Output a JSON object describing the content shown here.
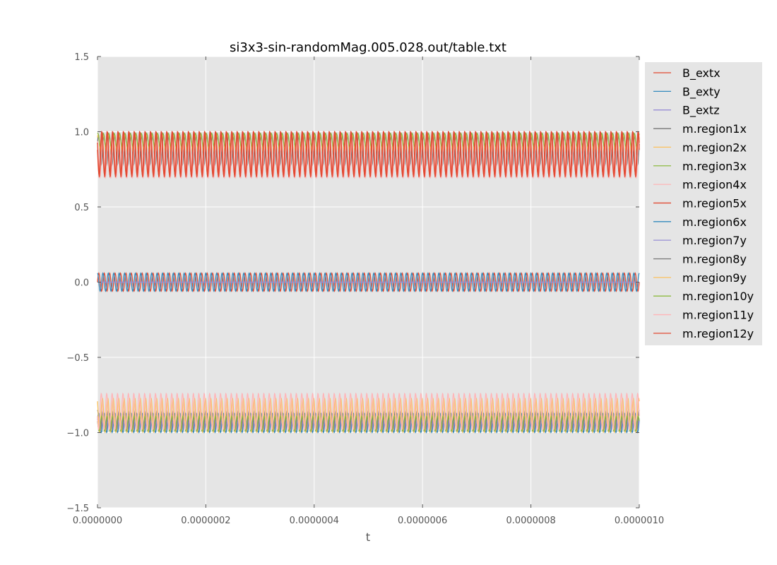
{
  "chart_data": {
    "type": "line",
    "title": "si3x3-sin-randomMag.005.028.out/table.txt",
    "xlabel": "t",
    "ylabel": "",
    "xlim": [
      0,
      1e-06
    ],
    "ylim": [
      -1.5,
      1.5
    ],
    "grid": true,
    "legend_placement": "outside-right-top",
    "x_ticks": [
      "0.0000000",
      "0.0000002",
      "0.0000004",
      "0.0000006",
      "0.0000008",
      "0.0000010"
    ],
    "x_tick_values": [
      0,
      2e-07,
      4e-07,
      6e-07,
      8e-07,
      1e-06
    ],
    "y_ticks": [
      "1.5",
      "1.0",
      "0.5",
      "0.0",
      "−0.5",
      "−1.0",
      "−1.5"
    ],
    "y_tick_values": [
      1.5,
      1.0,
      0.5,
      0.0,
      -0.5,
      -1.0,
      -1.5
    ],
    "oscillation_frequency_hz": 100000000.0,
    "series": [
      {
        "name": "B_extx",
        "color": "#E24A33",
        "mean": 0.0,
        "amplitude": 0.06,
        "phase": 0.0
      },
      {
        "name": "B_exty",
        "color": "#348ABD",
        "mean": 0.0,
        "amplitude": 0.06,
        "phase": 1.57
      },
      {
        "name": "B_extz",
        "color": "#988ED5",
        "mean": 0.0,
        "amplitude": 0.0,
        "phase": 0.0
      },
      {
        "name": "m.region1x",
        "color": "#777777",
        "mean": 0.88,
        "amplitude": 0.1,
        "phase": 0.4
      },
      {
        "name": "m.region2x",
        "color": "#FBC15E",
        "mean": 0.915,
        "amplitude": 0.065,
        "phase": 0.8
      },
      {
        "name": "m.region3x",
        "color": "#8EBA42",
        "mean": 0.945,
        "amplitude": 0.045,
        "phase": 1.2
      },
      {
        "name": "m.region4x",
        "color": "#FFB5B8",
        "mean": 0.82,
        "amplitude": 0.13,
        "phase": 2.0
      },
      {
        "name": "m.region5x",
        "color": "#E24A33",
        "mean": 0.85,
        "amplitude": 0.15,
        "phase": 2.6
      },
      {
        "name": "m.region6x",
        "color": "#348ABD",
        "mean": -0.935,
        "amplitude": 0.065,
        "phase": 0.3
      },
      {
        "name": "m.region7y",
        "color": "#988ED5",
        "mean": -0.94,
        "amplitude": 0.04,
        "phase": 1.0
      },
      {
        "name": "m.region8y",
        "color": "#777777",
        "mean": -0.92,
        "amplitude": 0.07,
        "phase": 1.6
      },
      {
        "name": "m.region9y",
        "color": "#FBC15E",
        "mean": -0.885,
        "amplitude": 0.115,
        "phase": 2.2
      },
      {
        "name": "m.region10y",
        "color": "#8EBA42",
        "mean": -0.94,
        "amplitude": 0.05,
        "phase": 2.8
      },
      {
        "name": "m.region11y",
        "color": "#FFB5B8",
        "mean": -0.86,
        "amplitude": 0.12,
        "phase": 3.4
      },
      {
        "name": "m.region12y",
        "color": "#E24A33",
        "mean": 0.86,
        "amplitude": 0.14,
        "phase": 3.0
      }
    ]
  }
}
